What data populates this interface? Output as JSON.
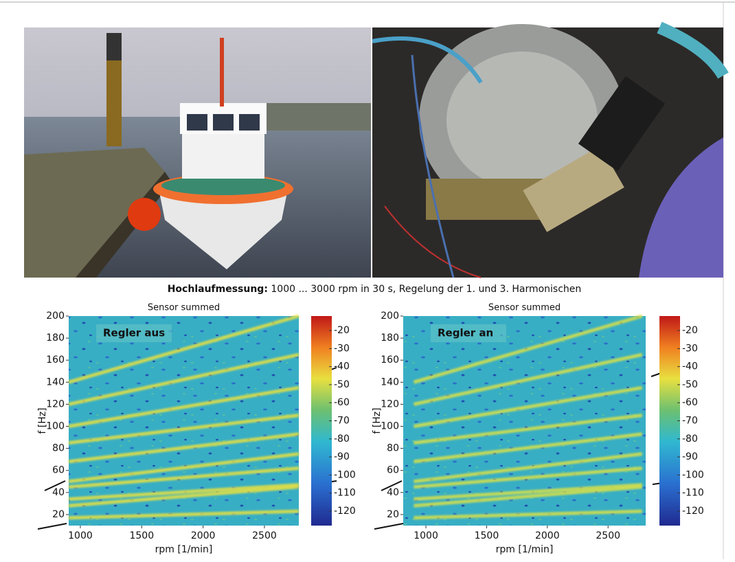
{
  "figure": {
    "caption_bold": "Hochlaufmessung:",
    "caption_rest": "1000 ... 3000 rpm in 30 s, Regelung der 1. und 3. Harmonischen"
  },
  "chart_data": [
    {
      "type": "heatmap",
      "title": "Sensor summed",
      "annotation": "Regler aus",
      "xlabel": "rpm [1/min]",
      "ylabel": "f [Hz]",
      "xlim": [
        905,
        2780
      ],
      "ylim": [
        10,
        200
      ],
      "xticks": [
        1000,
        1500,
        2000,
        2500
      ],
      "yticks": [
        20,
        40,
        60,
        80,
        100,
        120,
        140,
        160,
        180,
        200
      ],
      "colorbar": {
        "lim": [
          -128,
          -12
        ],
        "ticks": [
          -20,
          -30,
          -40,
          -50,
          -60,
          -70,
          -80,
          -90,
          -100,
          -110,
          -120
        ]
      },
      "ridge_color": "#e8e040",
      "series": [
        {
          "x": [
            905,
            2780
          ],
          "values": [
            17,
            23
          ]
        },
        {
          "x": [
            905,
            2780
          ],
          "values": [
            28,
            45
          ]
        },
        {
          "x": [
            905,
            2780
          ],
          "values": [
            34,
            47
          ]
        },
        {
          "x": [
            905,
            2780
          ],
          "values": [
            45,
            62
          ]
        },
        {
          "x": [
            905,
            2780
          ],
          "values": [
            50,
            75
          ]
        },
        {
          "x": [
            905,
            2780
          ],
          "values": [
            68,
            93
          ]
        },
        {
          "x": [
            905,
            2780
          ],
          "values": [
            85,
            110
          ]
        },
        {
          "x": [
            905,
            2780
          ],
          "values": [
            100,
            135
          ]
        },
        {
          "x": [
            905,
            2780
          ],
          "values": [
            120,
            165
          ]
        },
        {
          "x": [
            905,
            2780
          ],
          "values": [
            140,
            200
          ]
        }
      ]
    },
    {
      "type": "heatmap",
      "title": "Sensor summed",
      "annotation": "Regler an",
      "xlabel": "rpm [1/min]",
      "ylabel": "f [Hz]",
      "xlim": [
        813,
        2810
      ],
      "ylim": [
        10,
        200
      ],
      "xticks": [
        1000,
        1500,
        2000,
        2500
      ],
      "yticks": [
        20,
        40,
        60,
        80,
        100,
        120,
        140,
        160,
        180,
        200
      ],
      "colorbar": {
        "lim": [
          -128,
          -12
        ],
        "ticks": [
          -20,
          -30,
          -40,
          -50,
          -60,
          -70,
          -80,
          -90,
          -100,
          -110,
          -120
        ]
      },
      "ridge_color": "#d8e048",
      "series": [
        {
          "x": [
            900,
            2780
          ],
          "values": [
            17,
            23
          ]
        },
        {
          "x": [
            900,
            2780
          ],
          "values": [
            28,
            45
          ]
        },
        {
          "x": [
            900,
            2780
          ],
          "values": [
            34,
            47
          ]
        },
        {
          "x": [
            900,
            2780
          ],
          "values": [
            45,
            62
          ]
        },
        {
          "x": [
            900,
            2780
          ],
          "values": [
            50,
            75
          ]
        },
        {
          "x": [
            900,
            2780
          ],
          "values": [
            68,
            93
          ]
        },
        {
          "x": [
            900,
            2780
          ],
          "values": [
            85,
            110
          ]
        },
        {
          "x": [
            900,
            2780
          ],
          "values": [
            100,
            135
          ]
        },
        {
          "x": [
            900,
            2780
          ],
          "values": [
            120,
            165
          ]
        },
        {
          "x": [
            900,
            2780
          ],
          "values": [
            140,
            200
          ]
        }
      ]
    }
  ]
}
